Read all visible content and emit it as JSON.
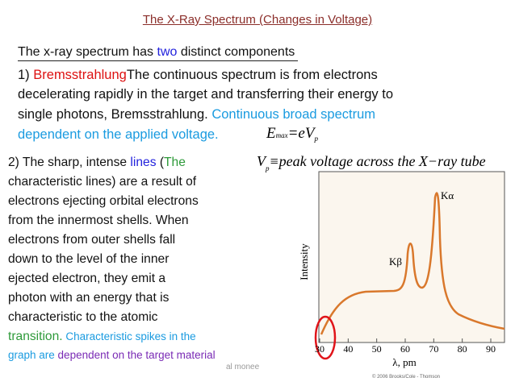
{
  "title": "The X-Ray Spectrum (Changes in Voltage)",
  "intro": [
    "The x-ray spectrum has ",
    "two",
    " distinct components"
  ],
  "point1": {
    "lines": [
      [
        "1) ",
        "Bremsstrahlung",
        "The continuous spectrum is from electrons"
      ],
      [
        "decelerating rapidly in the target and transferring their energy to"
      ],
      [
        "single photons, Bremsstrahlung. ",
        "Continuous broad spectrum"
      ],
      [
        "dependent on the applied voltage."
      ]
    ]
  },
  "formula1": [
    "E",
    "max",
    "=eV",
    "p"
  ],
  "formula2": [
    "V",
    "p",
    "≡peak voltage across the X−ray tube"
  ],
  "point2": {
    "lines": [
      [
        "2) The sharp, intense ",
        "lines",
        " (",
        "The"
      ],
      [
        "characteristic lines) are a result of"
      ],
      [
        "electrons ejecting orbital electrons"
      ],
      [
        "from the innermost shells. When"
      ],
      [
        "electrons from outer shells fall"
      ],
      [
        "down to the level of the inner"
      ],
      [
        "ejected electron, they emit a"
      ],
      [
        "photon with an energy that is"
      ],
      [
        "characteristic to the atomic"
      ],
      [
        "transition.",
        " Characteristic spikes in the"
      ],
      [
        "graph are ",
        "dependent on the target material"
      ]
    ]
  },
  "footer": "al monee",
  "figure": {
    "y_label": "Intensity",
    "x_label": "λ, pm",
    "xticks": [
      30,
      40,
      50,
      60,
      70,
      80,
      90
    ],
    "peak_alpha": "Kα",
    "peak_beta": "Kβ",
    "credit": "© 2006 Brooks/Cole - Thomson"
  }
}
